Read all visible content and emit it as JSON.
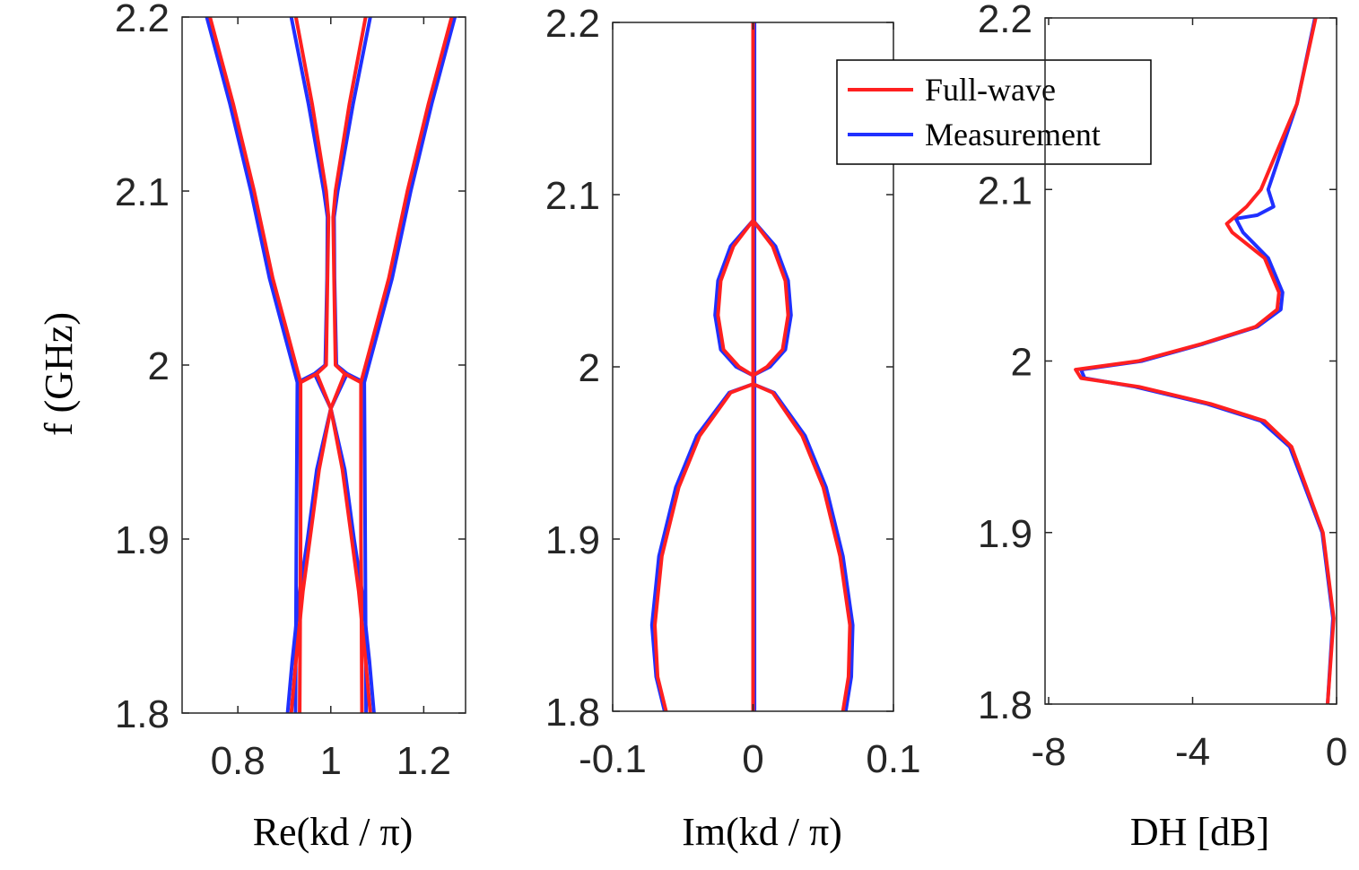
{
  "chart_data": [
    {
      "type": "line",
      "xlabel": "Re(kd / π)",
      "ylabel": "f (GHz)",
      "xlim": [
        0.68,
        1.29
      ],
      "xticks": [
        0.8,
        1,
        1.2
      ],
      "ylim": [
        1.8,
        2.2
      ],
      "yticks": [
        1.8,
        1.9,
        2,
        2.1,
        2.2
      ],
      "series": [
        {
          "color": "#2030ff",
          "branches": [
            {
              "f": [
                2.2,
                2.15,
                2.1,
                2.05,
                2.02,
                2.0,
                1.99,
                1.95,
                1.9,
                1.85,
                1.8
              ],
              "values": [
                0.733,
                0.783,
                0.828,
                0.868,
                0.898,
                0.918,
                0.928,
                0.927,
                0.926,
                0.925,
                0.924
              ]
            },
            {
              "f": [
                2.2,
                2.15,
                2.1,
                2.05,
                2.02,
                2.0,
                1.99,
                1.95,
                1.9,
                1.85,
                1.8
              ],
              "values": [
                1.267,
                1.217,
                1.172,
                1.132,
                1.102,
                1.082,
                1.072,
                1.073,
                1.074,
                1.075,
                1.076
              ]
            },
            {
              "f": [
                2.2,
                2.15,
                2.1,
                2.085,
                2.05,
                2.0,
                1.995,
                1.99
              ],
              "values": [
                0.915,
                0.952,
                0.985,
                0.993,
                0.992,
                0.988,
                0.965,
                0.928
              ]
            },
            {
              "f": [
                2.2,
                2.15,
                2.1,
                2.085,
                2.05,
                2.0,
                1.995,
                1.99
              ],
              "values": [
                1.085,
                1.048,
                1.015,
                1.007,
                1.008,
                1.012,
                1.035,
                1.072
              ]
            },
            {
              "f": [
                1.995,
                1.975,
                1.94,
                1.9,
                1.87,
                1.83,
                1.8
              ],
              "values": [
                0.965,
                1.0,
                1.03,
                1.05,
                1.067,
                1.083,
                1.093
              ]
            },
            {
              "f": [
                1.995,
                1.975,
                1.94,
                1.9,
                1.87,
                1.83,
                1.8
              ],
              "values": [
                1.035,
                1.0,
                0.97,
                0.95,
                0.933,
                0.917,
                0.907
              ]
            }
          ]
        },
        {
          "color": "#ff2020",
          "branches": [
            {
              "f": [
                2.2,
                2.15,
                2.1,
                2.05,
                2.02,
                2.0,
                1.99,
                1.95,
                1.9,
                1.85,
                1.8
              ],
              "values": [
                0.74,
                0.79,
                0.835,
                0.875,
                0.905,
                0.925,
                0.935,
                0.935,
                0.935,
                0.934,
                0.933
              ]
            },
            {
              "f": [
                2.2,
                2.15,
                2.1,
                2.05,
                2.02,
                2.0,
                1.99,
                1.95,
                1.9,
                1.85,
                1.8
              ],
              "values": [
                1.26,
                1.21,
                1.165,
                1.125,
                1.095,
                1.075,
                1.065,
                1.065,
                1.065,
                1.066,
                1.067
              ]
            },
            {
              "f": [
                2.2,
                2.15,
                2.1,
                2.085,
                2.05,
                2.0,
                1.995,
                1.99
              ],
              "values": [
                0.925,
                0.96,
                0.99,
                0.995,
                0.993,
                0.99,
                0.97,
                0.935
              ]
            },
            {
              "f": [
                2.2,
                2.15,
                2.1,
                2.085,
                2.05,
                2.0,
                1.995,
                1.99
              ],
              "values": [
                1.075,
                1.04,
                1.01,
                1.005,
                1.007,
                1.01,
                1.03,
                1.065
              ]
            },
            {
              "f": [
                1.995,
                1.975,
                1.94,
                1.9,
                1.87,
                1.83,
                1.8
              ],
              "values": [
                0.97,
                1.0,
                1.025,
                1.045,
                1.06,
                1.075,
                1.085
              ]
            },
            {
              "f": [
                1.995,
                1.975,
                1.94,
                1.9,
                1.87,
                1.83,
                1.8
              ],
              "values": [
                1.03,
                1.0,
                0.975,
                0.955,
                0.94,
                0.925,
                0.915
              ]
            }
          ]
        }
      ]
    },
    {
      "type": "line",
      "xlabel": "Im(kd / π)",
      "legend": "upper right",
      "xlim": [
        -0.1,
        0.1
      ],
      "xticks": [
        -0.1,
        0,
        0.1
      ],
      "ylim": [
        1.8,
        2.2
      ],
      "yticks": [
        1.8,
        1.9,
        2,
        2.1,
        2.2
      ],
      "series": [
        {
          "name": "Measurement",
          "color": "#2030ff",
          "branches": [
            {
              "f": [
                2.2,
                2.1,
                2.085,
                2.0,
                1.99,
                1.9,
                1.8
              ],
              "values": [
                0.001,
                0.001,
                0.001,
                0.001,
                0.001,
                0.001,
                0.001
              ]
            },
            {
              "f": [
                2.085,
                2.07,
                2.05,
                2.03,
                2.01,
                2.0,
                1.995
              ],
              "values": [
                0,
                0.016,
                0.025,
                0.027,
                0.023,
                0.012,
                0
              ]
            },
            {
              "f": [
                2.085,
                2.07,
                2.05,
                2.03,
                2.01,
                2.0,
                1.995
              ],
              "values": [
                0,
                -0.016,
                -0.025,
                -0.027,
                -0.023,
                -0.012,
                0
              ]
            },
            {
              "f": [
                1.99,
                1.985,
                1.96,
                1.93,
                1.89,
                1.85,
                1.82,
                1.8
              ],
              "values": [
                0,
                0.015,
                0.037,
                0.052,
                0.064,
                0.071,
                0.07,
                0.066
              ]
            },
            {
              "f": [
                1.99,
                1.985,
                1.96,
                1.93,
                1.89,
                1.85,
                1.82,
                1.8
              ],
              "values": [
                0,
                -0.017,
                -0.04,
                -0.055,
                -0.067,
                -0.072,
                -0.069,
                -0.063
              ]
            }
          ]
        },
        {
          "name": "Full-wave",
          "color": "#ff2020",
          "branches": [
            {
              "f": [
                2.2,
                2.1,
                2.085,
                2.0,
                1.99,
                1.9,
                1.8
              ],
              "values": [
                0,
                0,
                0,
                0,
                0,
                0,
                0
              ]
            },
            {
              "f": [
                2.085,
                2.07,
                2.05,
                2.03,
                2.01,
                2.0,
                1.995
              ],
              "values": [
                0,
                0.014,
                0.023,
                0.025,
                0.021,
                0.01,
                0
              ]
            },
            {
              "f": [
                2.085,
                2.07,
                2.05,
                2.03,
                2.01,
                2.0,
                1.995
              ],
              "values": [
                0,
                -0.014,
                -0.023,
                -0.025,
                -0.021,
                -0.01,
                0
              ]
            },
            {
              "f": [
                1.99,
                1.985,
                1.96,
                1.93,
                1.89,
                1.85,
                1.82,
                1.8
              ],
              "values": [
                0,
                0.014,
                0.035,
                0.05,
                0.062,
                0.069,
                0.068,
                0.064
              ]
            },
            {
              "f": [
                1.99,
                1.985,
                1.96,
                1.93,
                1.89,
                1.85,
                1.82,
                1.8
              ],
              "values": [
                0,
                -0.016,
                -0.038,
                -0.053,
                -0.065,
                -0.07,
                -0.068,
                -0.062
              ]
            }
          ]
        }
      ]
    },
    {
      "type": "line",
      "xlabel": "DH [dB]",
      "xlim": [
        -8.1,
        0
      ],
      "xticks": [
        -8,
        -4,
        0
      ],
      "ylim": [
        1.8,
        2.2
      ],
      "yticks": [
        1.8,
        1.9,
        2,
        2.1,
        2.2
      ],
      "series": [
        {
          "color": "#2030ff",
          "branches": [
            {
              "f": [
                2.2,
                2.15,
                2.1,
                2.09,
                2.085,
                2.083,
                2.075,
                2.06,
                2.04,
                2.03,
                2.02,
                2.01,
                2.0,
                1.995,
                1.99,
                1.985,
                1.975,
                1.965,
                1.95,
                1.9,
                1.85,
                1.8
              ],
              "values": [
                -0.6,
                -1.1,
                -1.9,
                -1.75,
                -2.2,
                -2.8,
                -2.6,
                -1.9,
                -1.5,
                -1.55,
                -2.2,
                -3.7,
                -5.4,
                -7.1,
                -7.0,
                -5.6,
                -3.6,
                -2.1,
                -1.3,
                -0.4,
                -0.1,
                -0.25
              ]
            }
          ]
        },
        {
          "color": "#ff2020",
          "branches": [
            {
              "f": [
                2.2,
                2.15,
                2.1,
                2.09,
                2.08,
                2.075,
                2.06,
                2.04,
                2.03,
                2.02,
                2.01,
                2.0,
                1.995,
                1.99,
                1.985,
                1.975,
                1.965,
                1.95,
                1.9,
                1.85,
                1.8
              ],
              "values": [
                -0.58,
                -1.1,
                -2.1,
                -2.5,
                -3.05,
                -2.9,
                -2.0,
                -1.6,
                -1.65,
                -2.25,
                -3.75,
                -5.5,
                -7.25,
                -7.1,
                -5.5,
                -3.5,
                -2.0,
                -1.25,
                -0.38,
                -0.08,
                -0.25
              ]
            }
          ]
        }
      ]
    }
  ]
}
